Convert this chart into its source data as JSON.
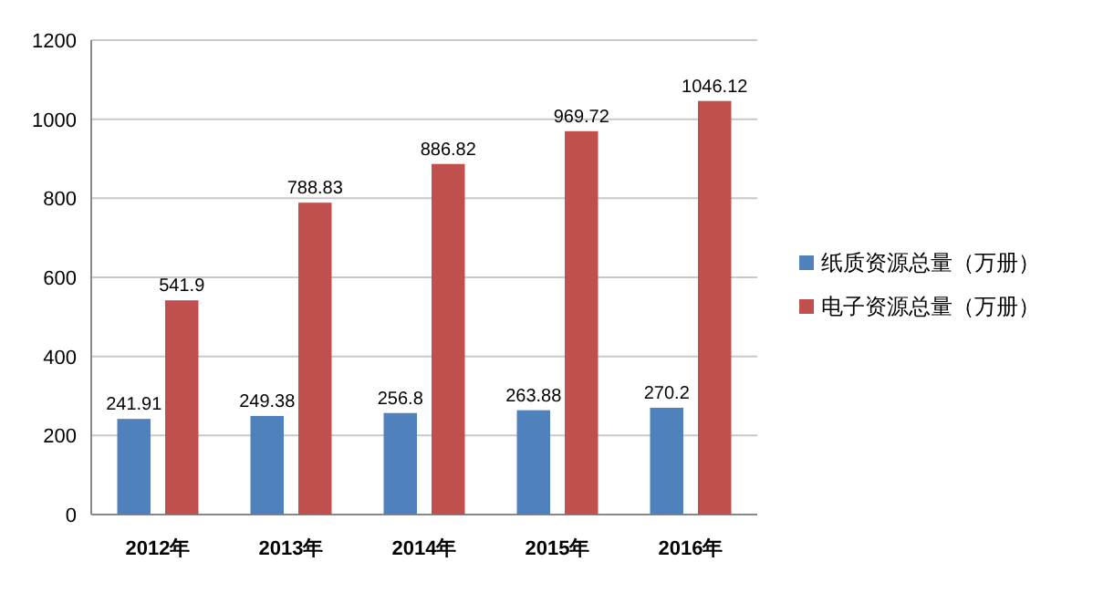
{
  "chart_data": {
    "type": "bar",
    "categories": [
      "2012年",
      "2013年",
      "2014年",
      "2015年",
      "2016年"
    ],
    "series": [
      {
        "name": "纸质资源总量（万册）",
        "color": "#4f81bd",
        "values": [
          241.91,
          249.38,
          256.8,
          263.88,
          270.2
        ]
      },
      {
        "name": "电子资源总量（万册）",
        "color": "#c0504d",
        "values": [
          541.9,
          788.83,
          886.82,
          969.72,
          1046.12
        ]
      }
    ],
    "ylim": [
      0,
      1200
    ],
    "yticks": [
      0,
      200,
      400,
      600,
      800,
      1000,
      1200
    ],
    "grid": "y",
    "legend": "right",
    "data_labels": true
  }
}
